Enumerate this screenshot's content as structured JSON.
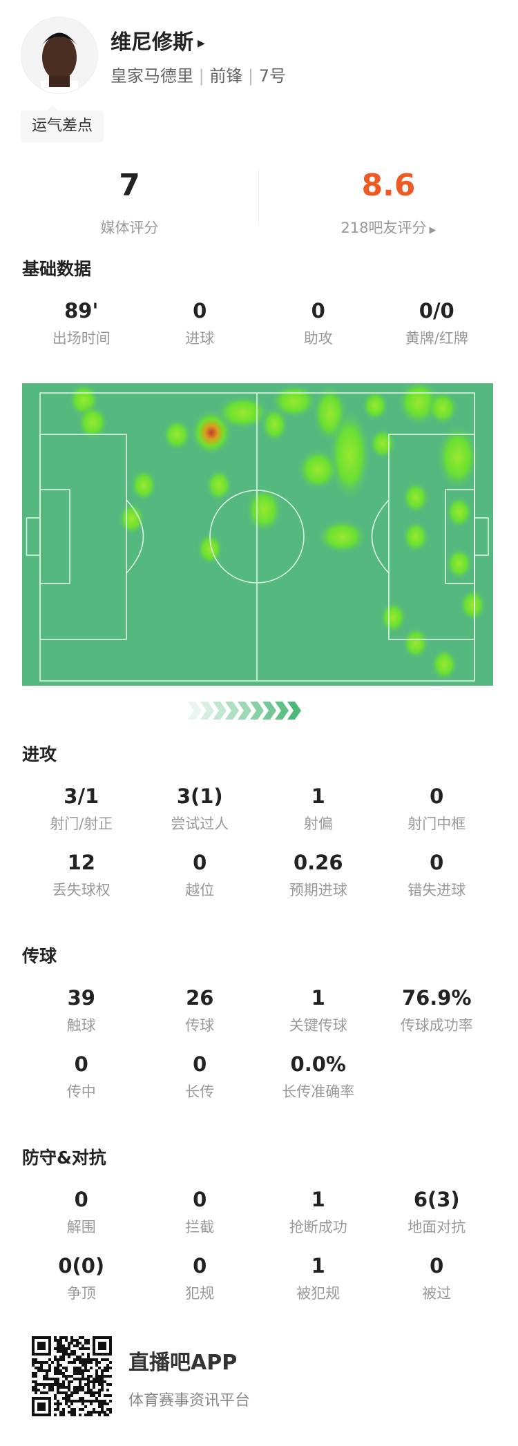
{
  "player": {
    "name": "维尼修斯",
    "team": "皇家马德里",
    "position": "前锋",
    "number": "7号",
    "tag": "运气差点"
  },
  "ratings": {
    "media_value": "7",
    "media_label": "媒体评分",
    "fan_value": "8.6",
    "fan_label": "218吧友评分",
    "fan_color": "#f05a22"
  },
  "sections": [
    {
      "title": "基础数据",
      "stats": [
        {
          "value": "89'",
          "label": "出场时间"
        },
        {
          "value": "0",
          "label": "进球"
        },
        {
          "value": "0",
          "label": "助攻"
        },
        {
          "value": "0/0",
          "label": "黄牌/红牌"
        }
      ]
    },
    {
      "title": "进攻",
      "stats": [
        {
          "value": "3/1",
          "label": "射门/射正"
        },
        {
          "value": "3(1)",
          "label": "尝试过人"
        },
        {
          "value": "1",
          "label": "射偏"
        },
        {
          "value": "0",
          "label": "射门中框"
        },
        {
          "value": "12",
          "label": "丢失球权"
        },
        {
          "value": "0",
          "label": "越位"
        },
        {
          "value": "0.26",
          "label": "预期进球"
        },
        {
          "value": "0",
          "label": "错失进球"
        }
      ]
    },
    {
      "title": "传球",
      "stats": [
        {
          "value": "39",
          "label": "触球"
        },
        {
          "value": "26",
          "label": "传球"
        },
        {
          "value": "1",
          "label": "关键传球"
        },
        {
          "value": "76.9%",
          "label": "传球成功率"
        },
        {
          "value": "0",
          "label": "传中"
        },
        {
          "value": "0",
          "label": "长传"
        },
        {
          "value": "0.0%",
          "label": "长传准确率"
        }
      ]
    },
    {
      "title": "防守&对抗",
      "stats": [
        {
          "value": "0",
          "label": "解围"
        },
        {
          "value": "0",
          "label": "拦截"
        },
        {
          "value": "1",
          "label": "抢断成功"
        },
        {
          "value": "6(3)",
          "label": "地面对抗"
        },
        {
          "value": "0(0)",
          "label": "争顶"
        },
        {
          "value": "0",
          "label": "犯规"
        },
        {
          "value": "1",
          "label": "被犯规"
        },
        {
          "value": "0",
          "label": "被过"
        }
      ]
    }
  ],
  "heatmap": {
    "pitch_color": "#55b97f",
    "line_color": "#e6f5ea",
    "attack_direction": "right"
  },
  "footer": {
    "app_name": "直播吧APP",
    "slogan": "体育赛事资讯平台"
  }
}
